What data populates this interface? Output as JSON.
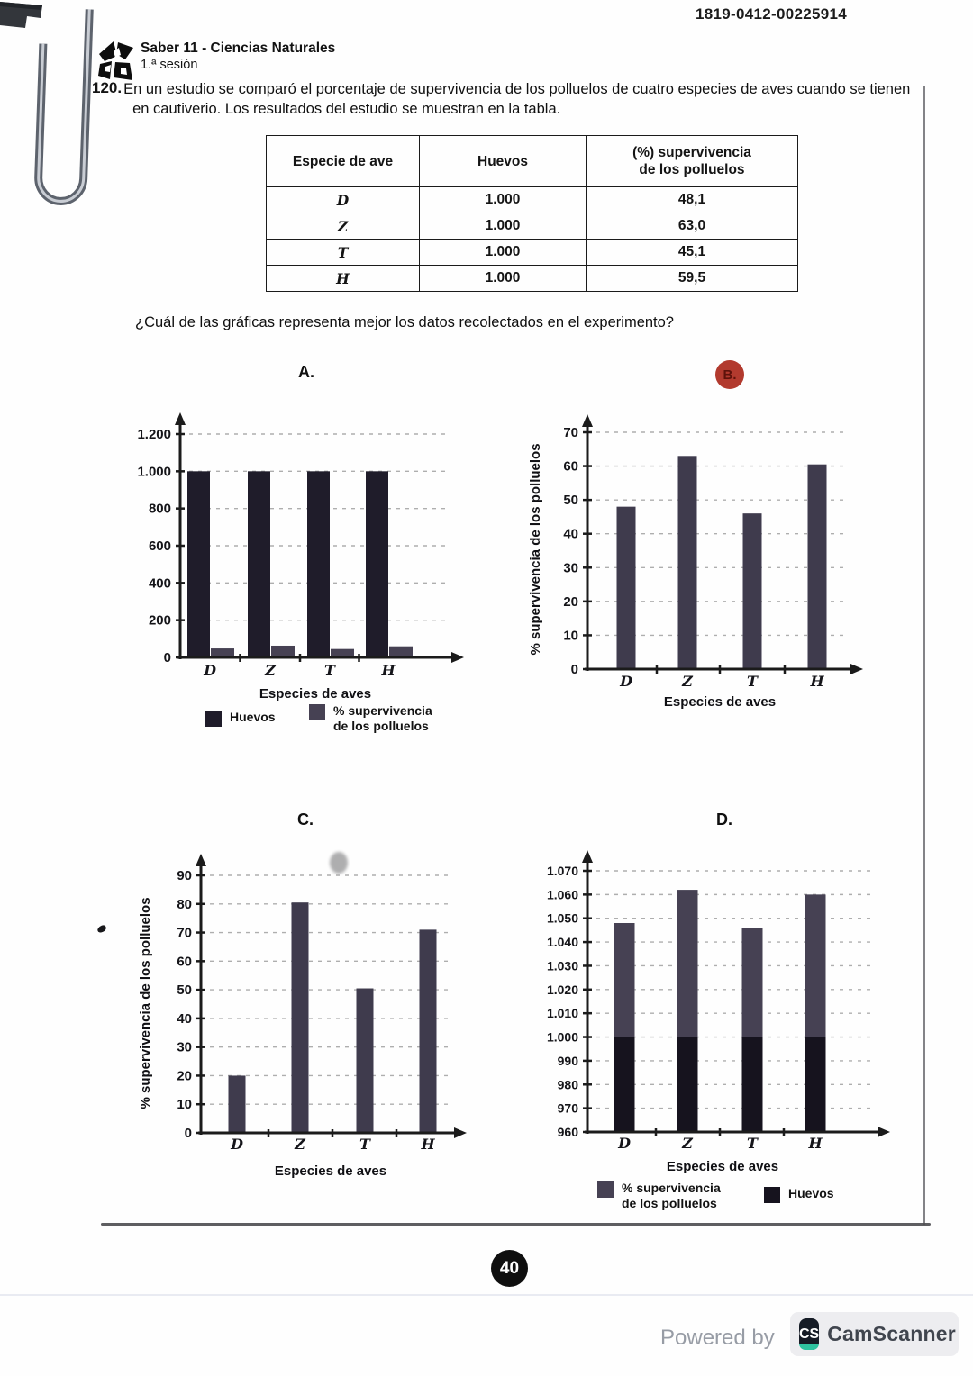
{
  "scan": {
    "doc_code": "1819-0412-00225914",
    "exam_title": "Saber 11 - Ciencias Naturales",
    "session": "1.ª sesión",
    "question_number": "120.",
    "question_text": "En un estudio se comparó el porcentaje de supervivencia de los polluelos de cuatro especies de aves cuando se tienen en cautiverio. Los resultados del estudio se muestran en la tabla.",
    "prompt": "¿Cuál de las gráficas representa mejor los datos recolectados en el experimento?",
    "page_number": "40"
  },
  "table": {
    "headers": [
      "Especie de ave",
      "Huevos",
      "(%) supervivencia\nde los polluelos"
    ],
    "rows": [
      [
        "D",
        "1.000",
        "48,1"
      ],
      [
        "Z",
        "1.000",
        "63,0"
      ],
      [
        "T",
        "1.000",
        "45,1"
      ],
      [
        "H",
        "1.000",
        "59,5"
      ]
    ]
  },
  "options": {
    "a": "A.",
    "b": "B.",
    "c": "C.",
    "d": "D.",
    "selected": "B"
  },
  "chart_data": [
    {
      "id": "A",
      "type": "bar",
      "variant": "grouped",
      "categories": [
        "D",
        "Z",
        "T",
        "H"
      ],
      "series": [
        {
          "name": "Huevos",
          "color_key": "bar_black",
          "values": [
            1000,
            1000,
            1000,
            1000
          ]
        },
        {
          "name": "% supervivencia\nde los polluelos",
          "color_key": "bar_gray",
          "values": [
            48.1,
            63,
            45.1,
            59.5
          ]
        }
      ],
      "xlabel": "Especies de aves",
      "ylabel": "",
      "ylim": [
        0,
        1200
      ],
      "yticks": {
        "values": [
          0,
          200,
          400,
          600,
          800,
          1000,
          1200
        ],
        "labels": [
          "0",
          "200",
          "400",
          "600",
          "800",
          "1.000",
          "1.200"
        ]
      },
      "grid": "dashed",
      "legend": "below"
    },
    {
      "id": "B",
      "type": "bar",
      "variant": "single",
      "categories": [
        "D",
        "Z",
        "T",
        "H"
      ],
      "series": [
        {
          "name": "% supervivencia de los polluelos",
          "color_key": "bar_dark2",
          "values": [
            48,
            63,
            46,
            60.5
          ]
        }
      ],
      "xlabel": "Especies de aves",
      "ylabel": "% supervivencia de los polluelos",
      "ylim": [
        0,
        70
      ],
      "yticks": {
        "values": [
          0,
          10,
          20,
          30,
          40,
          50,
          60,
          70
        ],
        "labels": [
          "0",
          "10",
          "20",
          "30",
          "40",
          "50",
          "60",
          "70"
        ]
      },
      "grid": "dashed",
      "legend": "none"
    },
    {
      "id": "C",
      "type": "bar",
      "variant": "single",
      "categories": [
        "D",
        "Z",
        "T",
        "H"
      ],
      "series": [
        {
          "name": "% supervivencia de los polluelos",
          "color_key": "bar_dark2",
          "values": [
            20,
            80.5,
            50.5,
            71
          ]
        }
      ],
      "xlabel": "Especies de aves",
      "ylabel": "% supervivencia de los polluelos",
      "ylim": [
        0,
        90
      ],
      "yticks": {
        "values": [
          0,
          10,
          20,
          30,
          40,
          50,
          60,
          70,
          80,
          90
        ],
        "labels": [
          "0",
          "10",
          "20",
          "30",
          "40",
          "50",
          "60",
          "70",
          "80",
          "90"
        ]
      },
      "grid": "dashed",
      "legend": "none"
    },
    {
      "id": "D",
      "type": "bar",
      "variant": "stacked",
      "categories": [
        "D",
        "Z",
        "T",
        "H"
      ],
      "series": [
        {
          "name": "Huevos",
          "color_key": "d_dark",
          "values": [
            1000,
            1000,
            1000,
            1000
          ]
        },
        {
          "name": "% supervivencia\nde los polluelos",
          "color_key": "bar_gray",
          "values": [
            48,
            62,
            46,
            60
          ]
        }
      ],
      "xlabel": "Especies de aves",
      "ylabel": "",
      "ylim": [
        960,
        1070
      ],
      "yticks": {
        "values": [
          960,
          970,
          980,
          990,
          1000,
          1010,
          1020,
          1030,
          1040,
          1050,
          1060,
          1070
        ],
        "labels": [
          "960",
          "970",
          "980",
          "990",
          "1.000",
          "1.010",
          "1.020",
          "1.030",
          "1.040",
          "1.050",
          "1.060",
          "1.070"
        ]
      },
      "grid": "dashed",
      "legend": "below"
    }
  ],
  "colors": {
    "bar_black": "#1f1c2a",
    "bar_gray": "#464153",
    "bar_dark2": "#3f3b4d",
    "d_dark": "#16131e",
    "axis": "#1b1b1b",
    "grid": "#aeaeae",
    "answer_circle": "#b23a2e",
    "camscanner_teal": "#2fc3a0"
  },
  "footer": {
    "powered_by": "Powered by",
    "brand": "CamScanner",
    "brand_badge": "CS"
  }
}
